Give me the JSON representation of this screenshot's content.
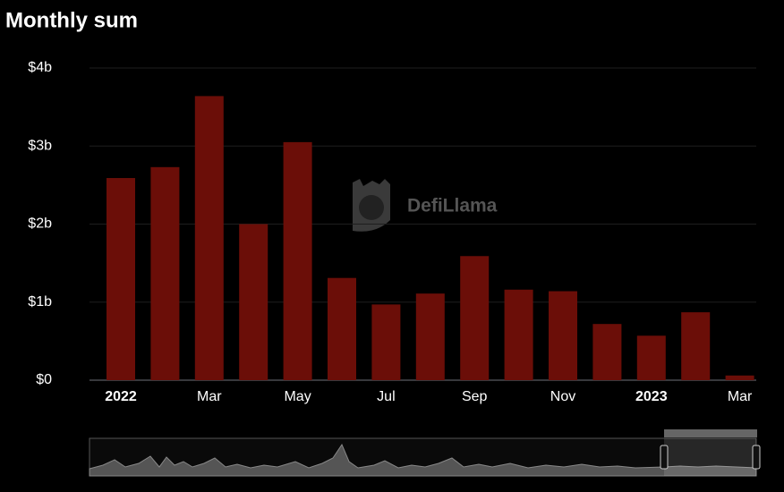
{
  "chart_data": {
    "type": "bar",
    "title": "Monthly sum",
    "watermark": "DefiLlama",
    "categories": [
      "2022",
      null,
      "Mar",
      null,
      "May",
      null,
      "Jul",
      null,
      "Sep",
      null,
      "Nov",
      null,
      "2023",
      null,
      "Mar"
    ],
    "values": [
      2.59,
      2.73,
      3.64,
      2.0,
      3.05,
      1.31,
      0.97,
      1.11,
      1.59,
      1.16,
      1.14,
      0.72,
      0.57,
      0.87,
      0.06
    ],
    "color": "#6b0e08",
    "ylim": [
      0,
      4
    ],
    "yticks": [
      {
        "value": 0,
        "label": "$0"
      },
      {
        "value": 1,
        "label": "$1b"
      },
      {
        "value": 2,
        "label": "$2b"
      },
      {
        "value": 3,
        "label": "$3b"
      },
      {
        "value": 4,
        "label": "$4b"
      }
    ],
    "grid": true
  }
}
